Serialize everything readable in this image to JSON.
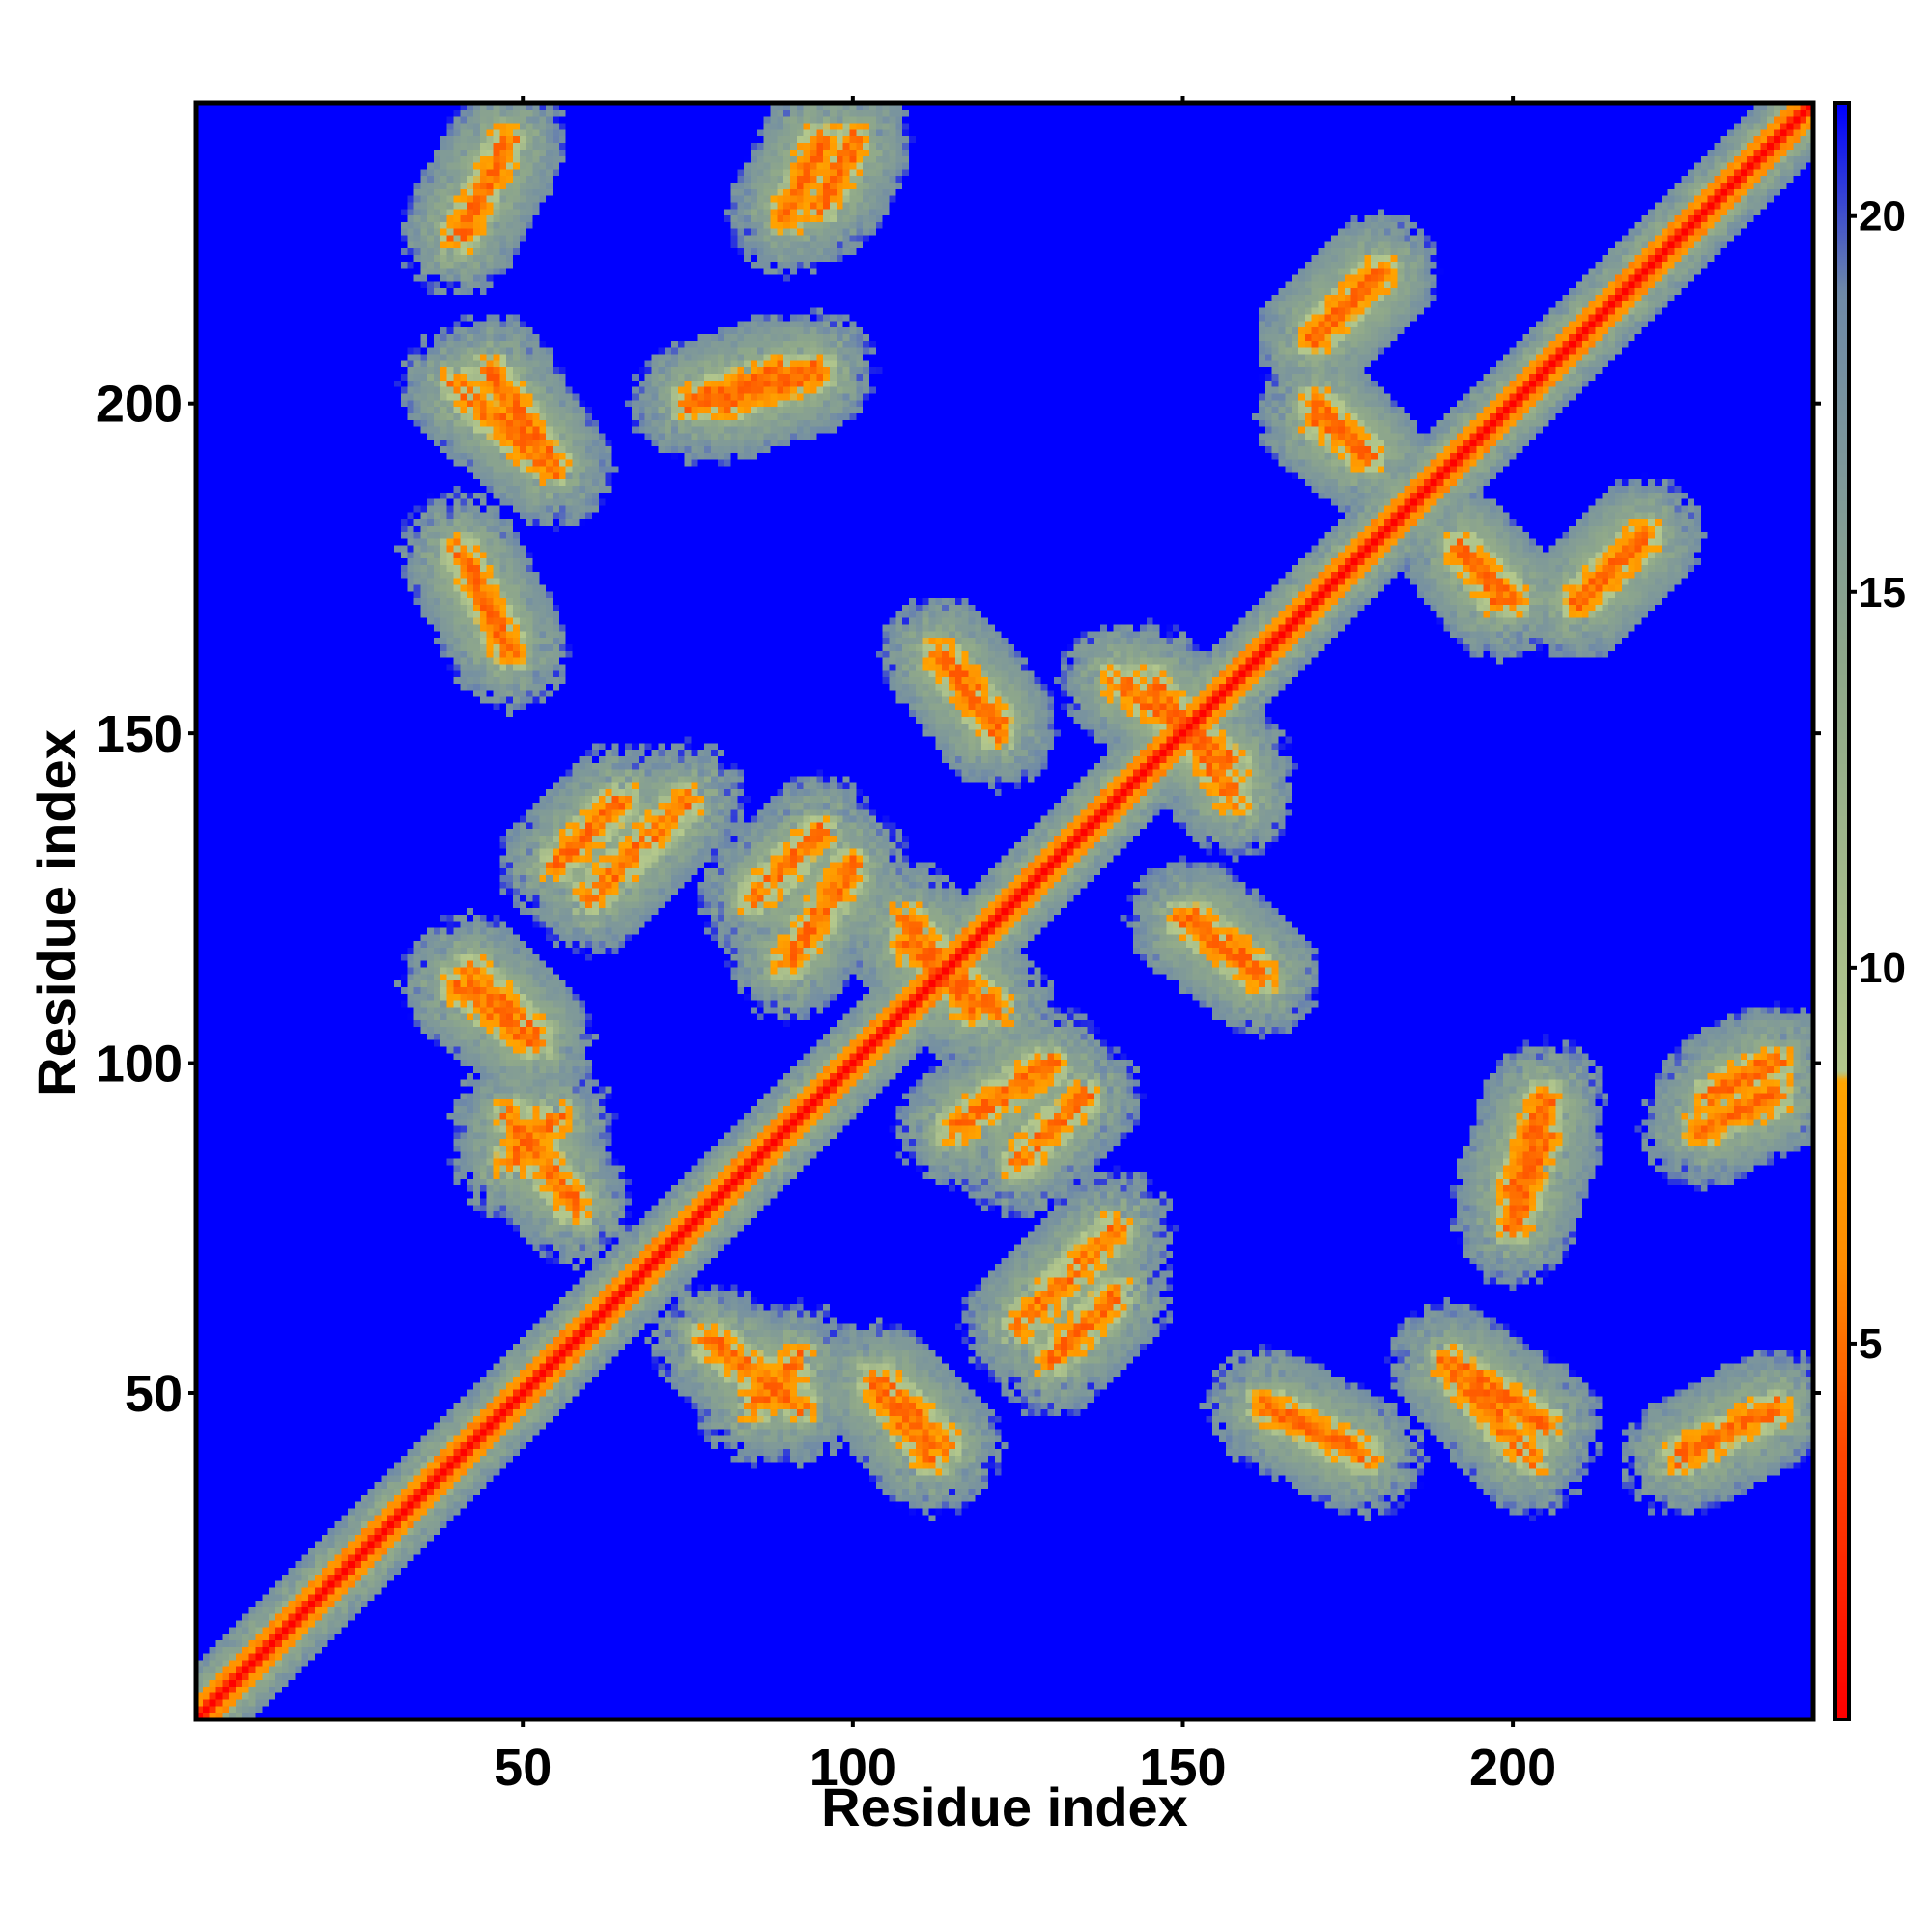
{
  "chart_data": {
    "type": "heatmap",
    "title": "",
    "xlabel": "Residue index",
    "ylabel": "Residue index",
    "xlim": [
      1,
      245
    ],
    "ylim": [
      1,
      245
    ],
    "x_ticks": [
      50,
      100,
      150,
      200
    ],
    "y_ticks": [
      50,
      100,
      150,
      200
    ],
    "x_tick_labels": [
      "50",
      "100",
      "150",
      "200"
    ],
    "y_tick_labels": [
      "50",
      "100",
      "150",
      "200"
    ],
    "matrix_size": 245,
    "value_quantity": "inter-residue distance",
    "colorbar": {
      "range": [
        0,
        21.5
      ],
      "ticks": [
        5,
        10,
        15,
        20
      ],
      "tick_labels": [
        "5",
        "10",
        "15",
        "20"
      ],
      "color_stops": [
        {
          "value": 0,
          "color": "#ff0000"
        },
        {
          "value": 3.5,
          "color": "#ff4500"
        },
        {
          "value": 6,
          "color": "#ff8c00"
        },
        {
          "value": 8.5,
          "color": "#ffa500"
        },
        {
          "value": 8.6,
          "color": "#b4c88c"
        },
        {
          "value": 14,
          "color": "#8fa88a"
        },
        {
          "value": 19,
          "color": "#6f8aa8"
        },
        {
          "value": 21.5,
          "color": "#0000ff"
        }
      ]
    },
    "colors": {
      "far": "#0000ff",
      "mid": "#a6bb8e",
      "near": "#ff8c00",
      "contact": "#ff0000"
    },
    "grid": false,
    "legend": "colorbar-right",
    "diagonal": {
      "value": 0
    },
    "near_diagonal_band": {
      "width_residues": 8
    },
    "contact_features": [
      {
        "type": "antiparallel",
        "x": [
          45,
          55
        ],
        "y": [
          190,
          205
        ]
      },
      {
        "type": "antiparallel",
        "x": [
          40,
          48
        ],
        "y": [
          162,
          178
        ]
      },
      {
        "type": "antiparallel",
        "x": [
          42,
          52
        ],
        "y": [
          104,
          114
        ]
      },
      {
        "type": "antiparallel",
        "x": [
          48,
          58
        ],
        "y": [
          78,
          92
        ]
      },
      {
        "type": "antiparallel",
        "x": [
          103,
          112
        ],
        "y": [
          40,
          52
        ]
      },
      {
        "type": "antiparallel",
        "x": [
          192,
          203
        ],
        "y": [
          40,
          52
        ]
      },
      {
        "type": "antiparallel",
        "x": [
          108,
          118
        ],
        "y": [
          108,
          122
        ]
      },
      {
        "type": "antiparallel",
        "x": [
          145,
          158
        ],
        "y": [
          140,
          158
        ]
      },
      {
        "type": "antiparallel",
        "x": [
          113,
          122
        ],
        "y": [
          150,
          162
        ]
      },
      {
        "type": "antiparallel",
        "x": [
          152,
          162
        ],
        "y": [
          113,
          122
        ]
      },
      {
        "type": "antiparallel",
        "x": [
          170,
          178
        ],
        "y": [
          192,
          200
        ]
      },
      {
        "type": "antiparallel",
        "x": [
          192,
          198
        ],
        "y": [
          170,
          178
        ]
      },
      {
        "type": "parallel",
        "x": [
          80,
          95
        ],
        "y": [
          200,
          205
        ]
      },
      {
        "type": "parallel",
        "x": [
          90,
          95
        ],
        "y": [
          228,
          240
        ]
      },
      {
        "type": "parallel",
        "x": [
          85,
          92
        ],
        "y": [
          48,
          55
        ]
      },
      {
        "type": "parallel",
        "x": [
          130,
          140
        ],
        "y": [
          55,
          65
        ]
      },
      {
        "type": "parallel",
        "x": [
          170,
          180
        ],
        "y": [
          210,
          220
        ]
      },
      {
        "type": "parallel",
        "x": [
          210,
          220
        ],
        "y": [
          170,
          180
        ]
      },
      {
        "type": "parallel",
        "x": [
          230,
          240
        ],
        "y": [
          95,
          100
        ]
      },
      {
        "type": "parallel",
        "x": [
          200,
          205
        ],
        "y": [
          75,
          90
        ]
      },
      {
        "type": "parallel",
        "x": [
          225,
          240
        ],
        "y": [
          40,
          48
        ]
      },
      {
        "type": "parallel",
        "x": [
          60,
          75
        ],
        "y": [
          125,
          140
        ]
      },
      {
        "type": "parallel",
        "x": [
          90,
          100
        ],
        "y": [
          115,
          130
        ]
      },
      {
        "type": "parallel",
        "x": [
          125,
          135
        ],
        "y": [
          85,
          95
        ]
      }
    ]
  }
}
